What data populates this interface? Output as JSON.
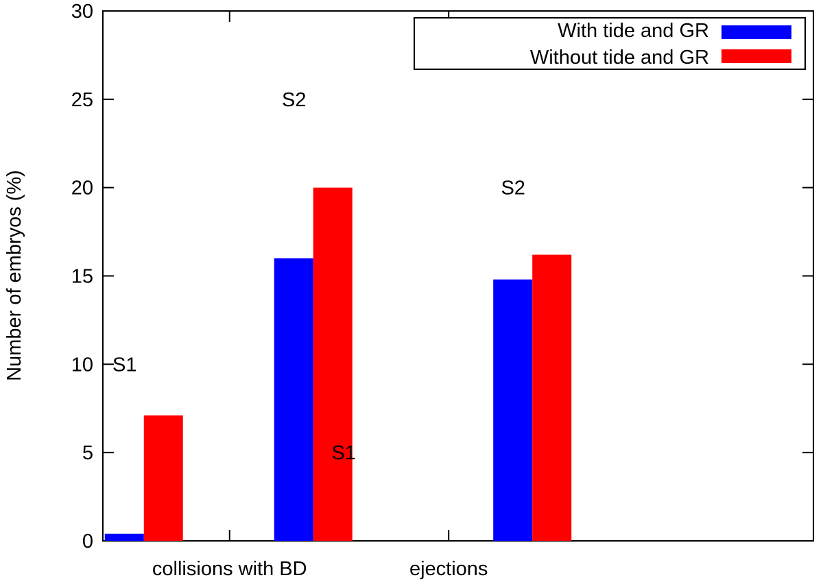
{
  "chart_data": {
    "type": "bar",
    "title": "",
    "xlabel": "",
    "ylabel": "Number of embryos (%)",
    "ylim": [
      0,
      30
    ],
    "yticks": [
      0,
      5,
      10,
      15,
      20,
      25,
      30
    ],
    "categories": [
      "collisions with BD",
      "ejections"
    ],
    "groups": [
      {
        "category": "collisions with BD",
        "label": "S1",
        "values": [
          0.4,
          7.1
        ],
        "label_value": 10
      },
      {
        "category": "collisions with BD",
        "label": "S2",
        "values": [
          16.0,
          20.0
        ],
        "label_value": 25
      },
      {
        "category": "ejections",
        "label": "S1",
        "values": [
          0,
          0
        ],
        "label_value": 5
      },
      {
        "category": "ejections",
        "label": "S2",
        "values": [
          14.8,
          16.2
        ],
        "label_value": 20
      }
    ],
    "series": [
      {
        "name": "With tide and GR",
        "color": "#0000ff"
      },
      {
        "name": "Without tide and GR",
        "color": "#ff0000"
      }
    ],
    "legend_position": "top-right",
    "grid": false
  }
}
